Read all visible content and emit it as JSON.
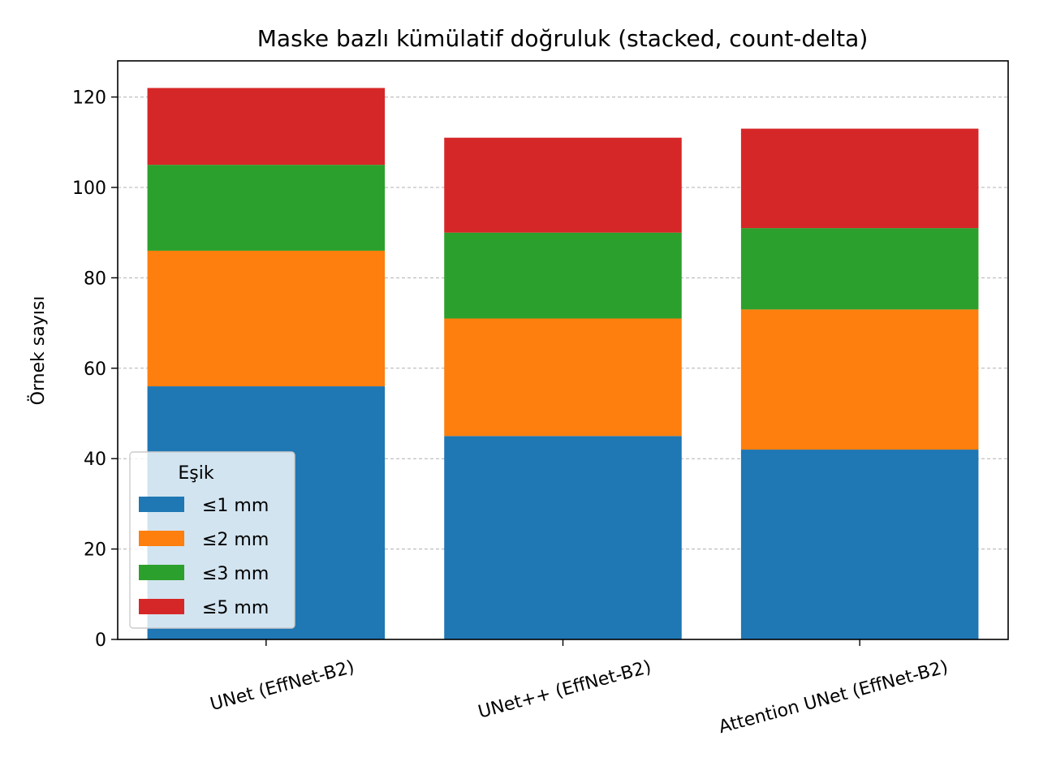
{
  "chart_data": {
    "type": "bar",
    "stacked": true,
    "title": "Maske bazlı kümülatif doğruluk (stacked, count-delta)",
    "xlabel": "",
    "ylabel": "Örnek sayısı",
    "ylim": [
      0,
      128
    ],
    "yticks": [
      0,
      20,
      40,
      60,
      80,
      100,
      120
    ],
    "grid": "y-dashed",
    "categories": [
      "UNet (EffNet-B2)",
      "UNet++ (EffNet-B2)",
      "Attention UNet (EffNet-B2)"
    ],
    "series": [
      {
        "name": "≤1 mm",
        "values": [
          56,
          45,
          42
        ],
        "color": "#1f77b4"
      },
      {
        "name": "≤2 mm",
        "values": [
          30,
          26,
          31
        ],
        "color": "#ff7f0e"
      },
      {
        "name": "≤3 mm",
        "values": [
          19,
          19,
          18
        ],
        "color": "#2ca02c"
      },
      {
        "name": "≤5 mm",
        "values": [
          17,
          21,
          22
        ],
        "color": "#d62728"
      }
    ],
    "legend": {
      "title": "Eşik",
      "placement": "lower-left"
    }
  }
}
